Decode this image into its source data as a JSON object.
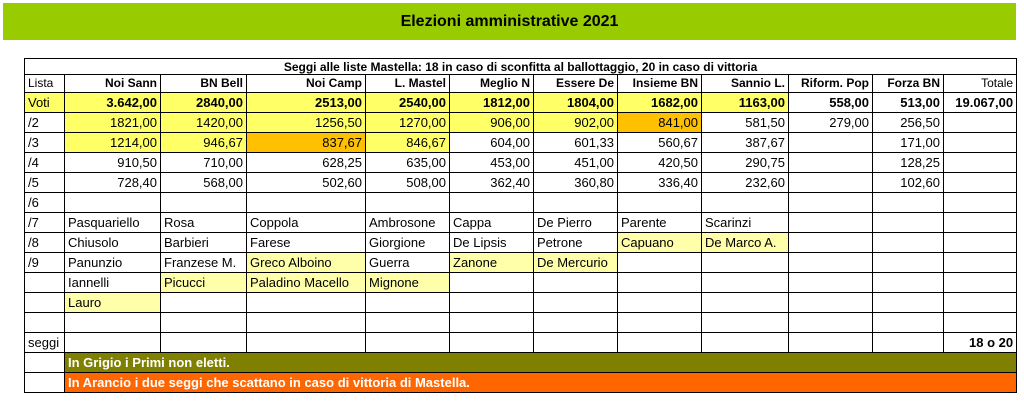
{
  "title": "Elezioni amministrative 2021",
  "header": "Seggi alle liste Mastella: 18 in caso di sconfitta al ballottaggio, 20 in caso di vittoria",
  "columns": {
    "c0": "Lista",
    "c1": "Noi Sann",
    "c2": "BN Bell",
    "c3": "Noi Camp",
    "c4": "L. Mastel",
    "c5": "Meglio N",
    "c6": "Essere De",
    "c7": "Insieme BN",
    "c8": "Sannio L.",
    "c9": "Riform. Pop",
    "c10": "Forza BN",
    "c11": "Totale"
  },
  "rows": {
    "voti": {
      "label": "Voti",
      "v1": "3.642,00",
      "v2": "2840,00",
      "v3": "2513,00",
      "v4": "2540,00",
      "v5": "1812,00",
      "v6": "1804,00",
      "v7": "1682,00",
      "v8": "1163,00",
      "v9": "558,00",
      "v10": "513,00",
      "v11": "19.067,00"
    },
    "d2": {
      "label": "/2",
      "v1": "1821,00",
      "v2": "1420,00",
      "v3": "1256,50",
      "v4": "1270,00",
      "v5": "906,00",
      "v6": "902,00",
      "v7": "841,00",
      "v8": "581,50",
      "v9": "279,00",
      "v10": "256,50"
    },
    "d3": {
      "label": "/3",
      "v1": "1214,00",
      "v2": "946,67",
      "v3": "837,67",
      "v4": "846,67",
      "v5": "604,00",
      "v6": "601,33",
      "v7": "560,67",
      "v8": "387,67",
      "v10": "171,00"
    },
    "d4": {
      "label": "/4",
      "v1": "910,50",
      "v2": "710,00",
      "v3": "628,25",
      "v4": "635,00",
      "v5": "453,00",
      "v6": "451,00",
      "v7": "420,50",
      "v8": "290,75",
      "v10": "128,25"
    },
    "d5": {
      "label": "/5",
      "v1": "728,40",
      "v2": "568,00",
      "v3": "502,60",
      "v4": "508,00",
      "v5": "362,40",
      "v6": "360,80",
      "v7": "336,40",
      "v8": "232,60",
      "v10": "102,60"
    },
    "d6": {
      "label": "/6"
    },
    "d7": {
      "label": "/7",
      "v1": "Pasquariello",
      "v2": "Rosa",
      "v3": "Coppola",
      "v4": "Ambrosone",
      "v5": "Cappa",
      "v6": "De Pierro",
      "v7": "Parente",
      "v8": "Scarinzi"
    },
    "d8": {
      "label": "/8",
      "v1": "Chiusolo",
      "v2": "Barbieri",
      "v3": "Farese",
      "v4": "Giorgione",
      "v5": "De Lipsis",
      "v6": "Petrone",
      "v7": "Capuano",
      "v8": "De Marco A."
    },
    "d9": {
      "label": "/9",
      "v1": "Panunzio",
      "v2": "Franzese M.",
      "v3": "Greco Alboino",
      "v4": "Guerra",
      "v5": "Zanone",
      "v6": "De Mercurio"
    },
    "n10": {
      "v1": "Iannelli",
      "v2": "Picucci",
      "v3": "Paladino Macello",
      "v4": "Mignone"
    },
    "n11": {
      "v1": "Lauro"
    },
    "seggi": {
      "label": "seggi",
      "total": "18 o 20"
    }
  },
  "legend": {
    "grey": "In Grigio i Primi non eletti.",
    "orange": "In Arancio i due seggi che scattano in caso di vittoria di Mastella."
  },
  "colors": {
    "title_bg": "#99cc00",
    "yellow": "#ffff66",
    "orange": "#ffc000",
    "light_yellow": "#ffffaa",
    "legend_grey": "#808000",
    "legend_orange": "#ff6600"
  }
}
